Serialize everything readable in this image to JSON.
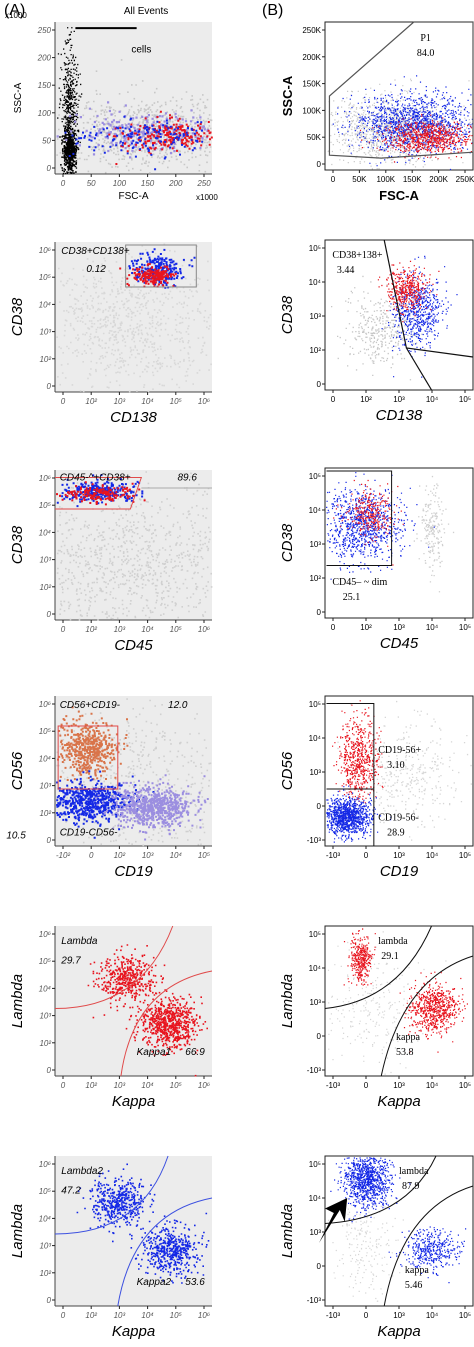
{
  "figure": {
    "panel_labels": [
      "(A)",
      "(B)"
    ]
  },
  "chart_data": [
    {
      "type": "scatter",
      "column": "A",
      "row": 0,
      "xlabel": "FSC-A",
      "ylabel": "SSC-A",
      "x_multiplier": "x1000",
      "y_multiplier": "x1000",
      "xticks": [
        "0",
        "50",
        "100",
        "150",
        "200",
        "250"
      ],
      "yticks": [
        "0",
        "50",
        "100",
        "150",
        "200",
        "250"
      ],
      "gates": [
        {
          "name": "All Events",
          "value": ""
        },
        {
          "name": "cells",
          "value": ""
        }
      ]
    },
    {
      "type": "scatter",
      "column": "B",
      "row": 0,
      "xlabel": "FSC-A",
      "ylabel": "SSC-A",
      "xticks": [
        "0",
        "50K",
        "100K",
        "150K",
        "200K",
        "250K"
      ],
      "yticks": [
        "0",
        "50K",
        "100K",
        "150K",
        "200K",
        "250K"
      ],
      "gates": [
        {
          "name": "P1",
          "value": "84.0"
        }
      ]
    },
    {
      "type": "scatter",
      "column": "A",
      "row": 1,
      "xlabel": "CD138",
      "ylabel": "CD38",
      "xticks": [
        "0",
        "10²",
        "10³",
        "10⁴",
        "10⁵",
        "10⁶"
      ],
      "yticks": [
        "0",
        "10²",
        "10³",
        "10⁴",
        "10⁵",
        "10⁶"
      ],
      "gates": [
        {
          "name": "CD38+CD138+",
          "value": "0.12"
        }
      ]
    },
    {
      "type": "scatter",
      "column": "B",
      "row": 1,
      "xlabel": "CD138",
      "ylabel": "CD38",
      "xticks": [
        "0",
        "10²",
        "10³",
        "10⁴",
        "10⁵"
      ],
      "yticks": [
        "0",
        "10²",
        "10³",
        "10⁴",
        "10⁵"
      ],
      "gates": [
        {
          "name": "CD38+138+",
          "value": "3.44"
        }
      ]
    },
    {
      "type": "scatter",
      "column": "A",
      "row": 2,
      "xlabel": "CD45",
      "ylabel": "CD38",
      "xticks": [
        "0",
        "10²",
        "10³",
        "10⁴",
        "10⁵",
        "10⁶"
      ],
      "yticks": [
        "0",
        "10²",
        "10³",
        "10⁴",
        "10⁵",
        "10⁶"
      ],
      "gates": [
        {
          "name": "CD45-^+CD38+",
          "value": "89.6"
        }
      ]
    },
    {
      "type": "scatter",
      "column": "B",
      "row": 2,
      "xlabel": "CD45",
      "ylabel": "CD38",
      "xticks": [
        "0",
        "10²",
        "10³",
        "10⁴",
        "10⁵"
      ],
      "yticks": [
        "0",
        "10²",
        "10³",
        "10⁴",
        "10⁵"
      ],
      "gates": [
        {
          "name": "CD45– ~ dim",
          "value": "25.1"
        }
      ]
    },
    {
      "type": "scatter",
      "column": "A",
      "row": 3,
      "xlabel": "CD19",
      "ylabel": "CD56",
      "xticks": [
        "-10²",
        "0",
        "10²",
        "10³",
        "10⁴",
        "10⁵"
      ],
      "yticks": [
        "0",
        "10²",
        "10³",
        "10⁴",
        "10⁵",
        "10⁶"
      ],
      "gates": [
        {
          "name": "CD56+CD19-",
          "value": "12.0"
        },
        {
          "name": "CD19-CD56-",
          "value": "10.5"
        }
      ]
    },
    {
      "type": "scatter",
      "column": "B",
      "row": 3,
      "xlabel": "CD19",
      "ylabel": "CD56",
      "xticks": [
        "-10³",
        "0",
        "10³",
        "10⁴",
        "10⁵"
      ],
      "yticks": [
        "-10³",
        "0",
        "10³",
        "10⁴",
        "10⁵"
      ],
      "gates": [
        {
          "name": "CD19-56+",
          "value": "3.10"
        },
        {
          "name": "CD19-56-",
          "value": "28.9"
        }
      ]
    },
    {
      "type": "scatter",
      "column": "A",
      "row": 4,
      "xlabel": "Kappa",
      "ylabel": "Lambda",
      "xticks": [
        "0",
        "10²",
        "10³",
        "10⁴",
        "10⁵",
        "10⁶"
      ],
      "yticks": [
        "0",
        "10²",
        "10³",
        "10⁴",
        "10⁵",
        "10⁶"
      ],
      "gates": [
        {
          "name": "Lambda",
          "value": "29.7"
        },
        {
          "name": "Kappa1",
          "value": "66.9"
        }
      ]
    },
    {
      "type": "scatter",
      "column": "B",
      "row": 4,
      "xlabel": "Kappa",
      "ylabel": "Lambda",
      "xticks": [
        "-10³",
        "0",
        "10³",
        "10⁴",
        "10⁵"
      ],
      "yticks": [
        "-10³",
        "0",
        "10³",
        "10⁴",
        "10⁵"
      ],
      "gates": [
        {
          "name": "lambda",
          "value": "29.1"
        },
        {
          "name": "kappa",
          "value": "53.8"
        }
      ]
    },
    {
      "type": "scatter",
      "column": "A",
      "row": 5,
      "xlabel": "Kappa",
      "ylabel": "Lambda",
      "xticks": [
        "0",
        "10²",
        "10³",
        "10⁴",
        "10⁵",
        "10⁶"
      ],
      "yticks": [
        "0",
        "10²",
        "10³",
        "10⁴",
        "10⁵",
        "10⁶"
      ],
      "gates": [
        {
          "name": "Lambda2",
          "value": "47.2"
        },
        {
          "name": "Kappa2",
          "value": "53.6"
        }
      ]
    },
    {
      "type": "scatter",
      "column": "B",
      "row": 5,
      "xlabel": "Kappa",
      "ylabel": "Lambda",
      "xticks": [
        "-10³",
        "0",
        "10³",
        "10⁴",
        "10⁵"
      ],
      "yticks": [
        "-10³",
        "0",
        "10³",
        "10⁴",
        "10⁵"
      ],
      "gates": [
        {
          "name": "lambda",
          "value": "87.9"
        },
        {
          "name": "kappa",
          "value": "5.46"
        }
      ]
    }
  ],
  "colors": {
    "red": "#e8141e",
    "blue": "#1428e6",
    "purple": "#9b8ee0",
    "orange": "#d9744a",
    "grey": "#c8c8c8",
    "gate_red": "#e04a4a",
    "gate_blue": "#3c50e0"
  }
}
